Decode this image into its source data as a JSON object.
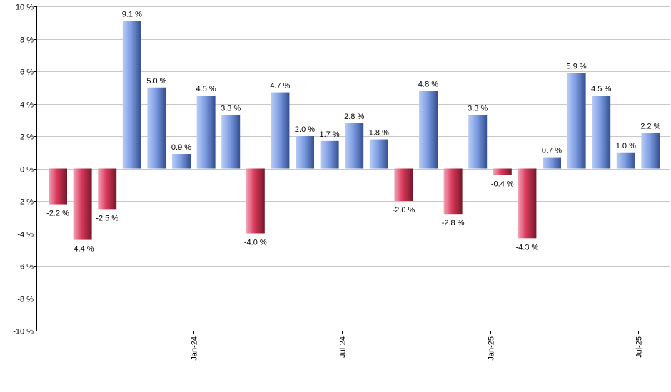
{
  "chart_data": {
    "type": "bar",
    "title": "",
    "xlabel": "",
    "ylabel": "",
    "ylim": [
      -10,
      10
    ],
    "y_ticks": [
      10,
      8,
      6,
      4,
      2,
      0,
      -2,
      -4,
      -6,
      -8,
      -10
    ],
    "y_tick_suffix": " %",
    "grid": true,
    "bars": [
      {
        "value": -2.2,
        "label": "-2.2 %"
      },
      {
        "value": -4.4,
        "label": "-4.4 %"
      },
      {
        "value": -2.5,
        "label": "-2.5 %"
      },
      {
        "value": 9.1,
        "label": "9.1 %"
      },
      {
        "value": 5.0,
        "label": "5.0 %"
      },
      {
        "value": 0.9,
        "label": "0.9 %"
      },
      {
        "value": 4.5,
        "label": "4.5 %"
      },
      {
        "value": 3.3,
        "label": "3.3 %"
      },
      {
        "value": -4.0,
        "label": "-4.0 %"
      },
      {
        "value": 4.7,
        "label": "4.7 %"
      },
      {
        "value": 2.0,
        "label": "2.0 %"
      },
      {
        "value": 1.7,
        "label": "1.7 %"
      },
      {
        "value": 2.8,
        "label": "2.8 %"
      },
      {
        "value": 1.8,
        "label": "1.8 %"
      },
      {
        "value": -2.0,
        "label": "-2.0 %"
      },
      {
        "value": 4.8,
        "label": "4.8 %"
      },
      {
        "value": -2.8,
        "label": "-2.8 %"
      },
      {
        "value": 3.3,
        "label": "3.3 %"
      },
      {
        "value": -0.4,
        "label": "-0.4 %"
      },
      {
        "value": -4.3,
        "label": "-4.3 %"
      },
      {
        "value": 0.7,
        "label": "0.7 %"
      },
      {
        "value": 5.9,
        "label": "5.9 %"
      },
      {
        "value": 4.5,
        "label": "4.5 %"
      },
      {
        "value": 1.0,
        "label": "1.0 %"
      },
      {
        "value": 2.2,
        "label": "2.2 %"
      }
    ],
    "x_tick_labels": [
      {
        "bar_index": 5.5,
        "label": "Jan-24"
      },
      {
        "bar_index": 11.5,
        "label": "Jul-24"
      },
      {
        "bar_index": 17.5,
        "label": "Jan-25"
      },
      {
        "bar_index": 23.5,
        "label": "Jul-25"
      }
    ],
    "colors": {
      "positive_light": "#b9cdf7",
      "positive_mid": "#7e9de2",
      "positive_dark": "#334f91",
      "negative_light": "#f3a6b8",
      "negative_mid": "#d9385a",
      "negative_dark": "#731828",
      "grid": "#c8c8c8",
      "axis": "#000000"
    }
  }
}
